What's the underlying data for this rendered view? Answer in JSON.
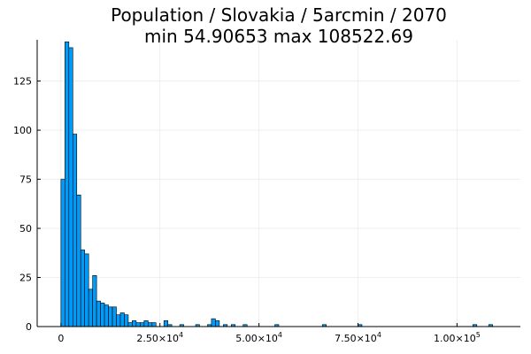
{
  "title_line1": "Population / Slovakia / 5arcmin / 2070",
  "title_line2": "min 54.90653  max 108522.69",
  "chart_data": {
    "type": "bar",
    "subtype": "histogram",
    "bin_width": 1000,
    "bin_start": 0,
    "counts": [
      75,
      145,
      142,
      98,
      67,
      39,
      37,
      19,
      26,
      13,
      12,
      11,
      10,
      10,
      6,
      7,
      6,
      2,
      3,
      2,
      2,
      3,
      2,
      2,
      0,
      0,
      3,
      1,
      0,
      0,
      1,
      0,
      0,
      0,
      1,
      0,
      0,
      1,
      4,
      3,
      0,
      1,
      0,
      1,
      0,
      0,
      1,
      0,
      0,
      0,
      0,
      0,
      0,
      0,
      1,
      0,
      0,
      0,
      0,
      0,
      0,
      0,
      0,
      0,
      0,
      0,
      1,
      0,
      0,
      0,
      0,
      0,
      0,
      0,
      0,
      1,
      0,
      0,
      0,
      0,
      0,
      0,
      0,
      0,
      0,
      0,
      0,
      0,
      0,
      0,
      0,
      0,
      0,
      0,
      0,
      0,
      0,
      0,
      0,
      0,
      0,
      0,
      0,
      0,
      1,
      0,
      0,
      0,
      1
    ],
    "xlim": [
      -6000,
      116000
    ],
    "ylim": [
      0,
      146
    ],
    "x_ticks": [
      {
        "value": 0,
        "mant": "0",
        "exp": ""
      },
      {
        "value": 25000,
        "mant": "2.50×10",
        "exp": "4"
      },
      {
        "value": 50000,
        "mant": "5.00×10",
        "exp": "4"
      },
      {
        "value": 75000,
        "mant": "7.50×10",
        "exp": "4"
      },
      {
        "value": 100000,
        "mant": "1.00×10",
        "exp": "5"
      }
    ],
    "y_ticks": [
      0,
      25,
      50,
      75,
      100,
      125
    ],
    "grid": true,
    "legend": "none",
    "bar_color": "#009af9"
  }
}
